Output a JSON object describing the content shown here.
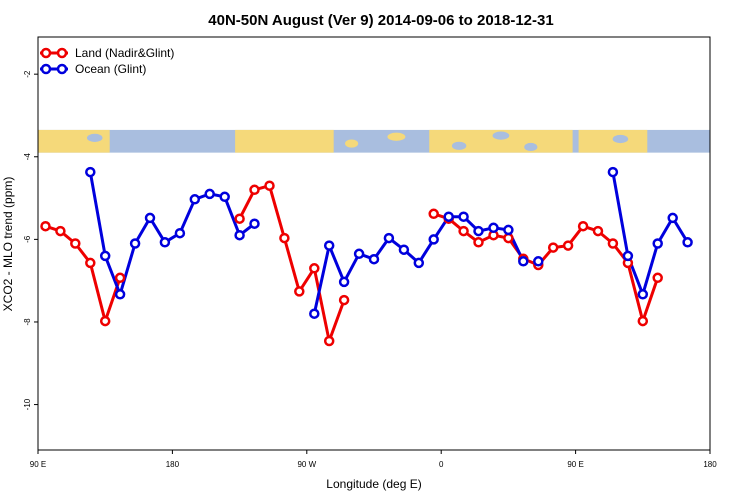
{
  "chart_data": {
    "type": "line",
    "title": "40N-50N August (Ver 9)   2014-09-06 to 2018-12-31",
    "xlabel": "Longitude (deg E)",
    "ylabel": "XCO2 - MLO trend (ppm)",
    "xlim": [
      90,
      540
    ],
    "ylim": [
      -11.1,
      -1.1
    ],
    "x_ticks": [
      {
        "value": 90,
        "label": "90 E"
      },
      {
        "value": 180,
        "label": "180"
      },
      {
        "value": 270,
        "label": "90 W"
      },
      {
        "value": 360,
        "label": "0"
      },
      {
        "value": 450,
        "label": "90 E"
      },
      {
        "value": 540,
        "label": "180"
      }
    ],
    "y_ticks": [
      {
        "value": -2,
        "label": "-2"
      },
      {
        "value": -4,
        "label": "-4"
      },
      {
        "value": -6,
        "label": "-6"
      },
      {
        "value": -8,
        "label": "-8"
      },
      {
        "value": -10,
        "label": "-10"
      }
    ],
    "legend_position": "top-left",
    "colors": {
      "land": "#ee0000",
      "ocean": "#0000dd",
      "land_map": "#f5d97a",
      "ocean_map": "#a9bedf"
    },
    "map_strip": {
      "y_top": -3.35,
      "y_bottom": -3.9
    },
    "series": [
      {
        "name": "Land (Nadir&Glint)",
        "color": "#ee0000",
        "segments": [
          [
            [
              95,
              -5.68
            ],
            [
              105,
              -5.8
            ],
            [
              115,
              -6.1
            ],
            [
              125,
              -6.57
            ],
            [
              135,
              -7.98
            ],
            [
              145,
              -6.93
            ]
          ],
          [
            [
              225,
              -5.5
            ],
            [
              235,
              -4.8
            ],
            [
              245,
              -4.7
            ],
            [
              255,
              -5.97
            ],
            [
              265,
              -7.26
            ],
            [
              275,
              -6.7
            ],
            [
              285,
              -8.46
            ],
            [
              295,
              -7.47
            ]
          ],
          [
            [
              355,
              -5.38
            ],
            [
              365,
              -5.5
            ],
            [
              375,
              -5.8
            ],
            [
              385,
              -6.07
            ],
            [
              395,
              -5.9
            ],
            [
              405,
              -5.97
            ],
            [
              415,
              -6.47
            ],
            [
              425,
              -6.62
            ],
            [
              435,
              -6.2
            ],
            [
              445,
              -6.15
            ],
            [
              455,
              -5.68
            ],
            [
              465,
              -5.8
            ],
            [
              475,
              -6.1
            ],
            [
              485,
              -6.57
            ],
            [
              495,
              -7.98
            ],
            [
              505,
              -6.93
            ]
          ]
        ]
      },
      {
        "name": "Ocean (Glint)",
        "color": "#0000dd",
        "segments": [
          [
            [
              125,
              -4.37
            ],
            [
              135,
              -6.4
            ],
            [
              145,
              -7.33
            ],
            [
              155,
              -6.1
            ],
            [
              165,
              -5.48
            ],
            [
              175,
              -6.07
            ],
            [
              185,
              -5.85
            ],
            [
              195,
              -5.03
            ],
            [
              205,
              -4.9
            ],
            [
              215,
              -4.97
            ],
            [
              225,
              -5.9
            ],
            [
              235,
              -5.62
            ]
          ],
          [
            [
              275,
              -7.8
            ],
            [
              285,
              -6.15
            ],
            [
              295,
              -7.03
            ],
            [
              305,
              -6.35
            ],
            [
              315,
              -6.48
            ],
            [
              325,
              -5.97
            ],
            [
              335,
              -6.25
            ],
            [
              345,
              -6.57
            ],
            [
              355,
              -6.0
            ],
            [
              365,
              -5.45
            ],
            [
              375,
              -5.45
            ],
            [
              385,
              -5.8
            ],
            [
              395,
              -5.72
            ],
            [
              405,
              -5.77
            ],
            [
              415,
              -6.53
            ]
          ],
          [
            [
              425,
              -6.53
            ]
          ],
          [
            [
              475,
              -4.37
            ],
            [
              485,
              -6.4
            ],
            [
              495,
              -7.33
            ],
            [
              505,
              -6.1
            ],
            [
              515,
              -5.48
            ],
            [
              525,
              -6.07
            ]
          ]
        ]
      }
    ]
  }
}
